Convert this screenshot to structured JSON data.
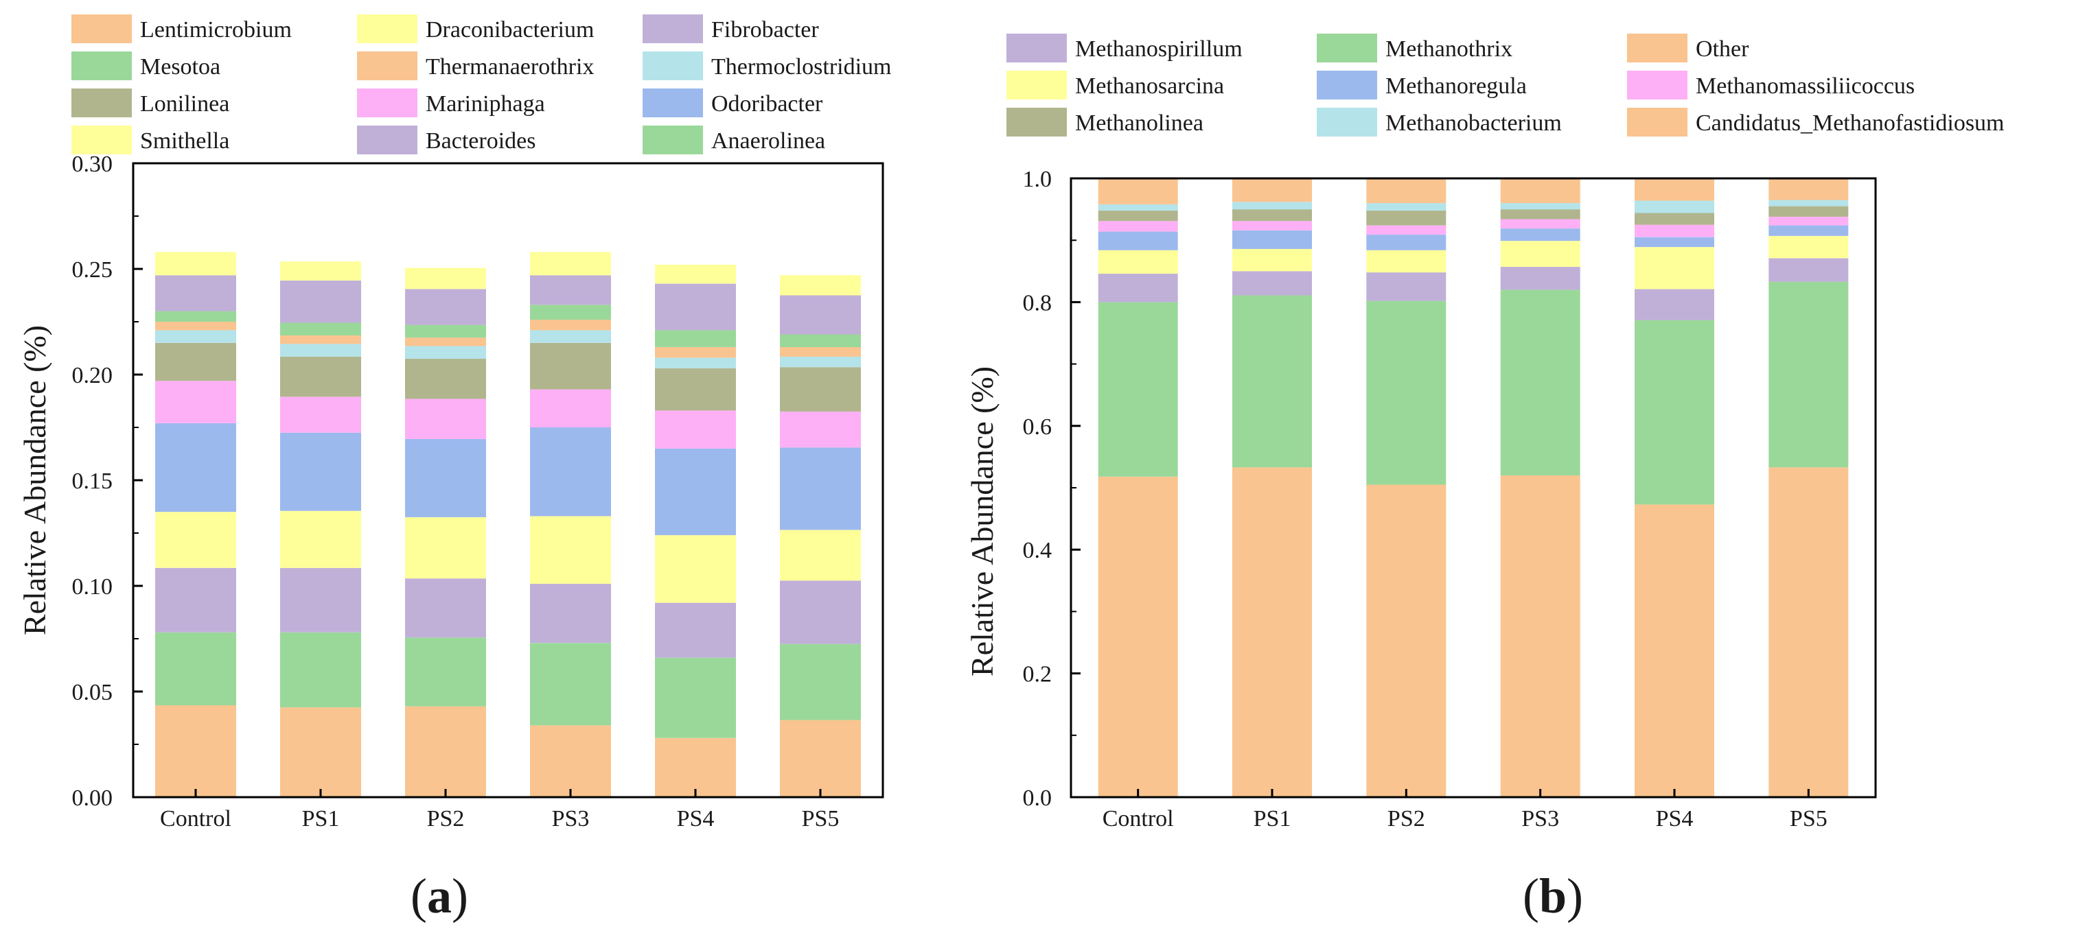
{
  "chart_data": [
    {
      "type": "bar",
      "stacked": true,
      "panel_label": "(a)",
      "panel_letter": "a",
      "title": "",
      "xlabel": "",
      "ylabel": "Relative Abundance (%)",
      "ylim": [
        0,
        0.3
      ],
      "yticks": [
        "0.00",
        "0.05",
        "0.10",
        "0.15",
        "0.20",
        "0.25",
        "0.30"
      ],
      "grid": false,
      "legend_position": "top",
      "categories": [
        "Control",
        "PS1",
        "PS2",
        "PS3",
        "PS4",
        "PS5"
      ],
      "series": [
        {
          "name": "Lentimicrobium",
          "color": "#F9C48F",
          "values": [
            0.0435,
            0.0425,
            0.043,
            0.034,
            0.028,
            0.0365
          ]
        },
        {
          "name": "Mesotoa",
          "color": "#9AD89A",
          "values": [
            0.0345,
            0.0355,
            0.0325,
            0.039,
            0.038,
            0.036
          ]
        },
        {
          "name": "Bacteroides",
          "color": "#C0B0D8",
          "values": [
            0.0305,
            0.0305,
            0.028,
            0.028,
            0.026,
            0.03
          ]
        },
        {
          "name": "Smithella",
          "color": "#FFFF9A",
          "values": [
            0.0265,
            0.027,
            0.029,
            0.032,
            0.032,
            0.024
          ]
        },
        {
          "name": "Odoribacter",
          "color": "#9CB9EE",
          "values": [
            0.042,
            0.037,
            0.037,
            0.042,
            0.041,
            0.039
          ]
        },
        {
          "name": "Mariniphaga",
          "color": "#FDB0F5",
          "values": [
            0.02,
            0.017,
            0.019,
            0.018,
            0.018,
            0.017
          ]
        },
        {
          "name": "Lonilinea",
          "color": "#B1B58E",
          "values": [
            0.018,
            0.019,
            0.019,
            0.022,
            0.02,
            0.021
          ]
        },
        {
          "name": "Thermoclostridium",
          "color": "#B4E3EA",
          "values": [
            0.006,
            0.006,
            0.006,
            0.006,
            0.005,
            0.005
          ]
        },
        {
          "name": "Thermanaerothrix",
          "color": "#F9C48F",
          "values": [
            0.004,
            0.004,
            0.004,
            0.005,
            0.005,
            0.0045
          ]
        },
        {
          "name": "Anaerolinea",
          "color": "#9AD89A",
          "values": [
            0.005,
            0.006,
            0.006,
            0.007,
            0.008,
            0.006
          ]
        },
        {
          "name": "Fibrobacter",
          "color": "#C0B0D8",
          "values": [
            0.017,
            0.02,
            0.017,
            0.014,
            0.022,
            0.0185
          ]
        },
        {
          "name": "Draconibacterium",
          "color": "#FFFF9A",
          "values": [
            0.011,
            0.009,
            0.01,
            0.011,
            0.009,
            0.0095
          ]
        }
      ],
      "legend": [
        [
          "Lentimicrobium",
          "Draconibacterium",
          "Fibrobacter"
        ],
        [
          "Mesotoa",
          "Thermanaerothrix",
          "Thermoclostridium"
        ],
        [
          "Lonilinea",
          "Mariniphaga",
          "Odoribacter"
        ],
        [
          "Smithella",
          "Bacteroides",
          "Anaerolinea"
        ]
      ]
    },
    {
      "type": "bar",
      "stacked": true,
      "panel_label": "(b)",
      "panel_letter": "b",
      "title": "",
      "xlabel": "",
      "ylabel": "Relative Abundance (%)",
      "ylim": [
        0,
        1.0
      ],
      "yticks": [
        "0.0",
        "0.2",
        "0.4",
        "0.6",
        "0.8",
        "1.0"
      ],
      "grid": false,
      "legend_position": "top",
      "categories": [
        "Control",
        "PS1",
        "PS2",
        "PS3",
        "PS4",
        "PS5"
      ],
      "series": [
        {
          "name": "Candidatus_Methanofastidiosum",
          "color": "#F9C48F",
          "values": [
            0.518,
            0.533,
            0.505,
            0.52,
            0.473,
            0.533
          ]
        },
        {
          "name": "Methanothrix",
          "color": "#9AD89A",
          "values": [
            0.282,
            0.278,
            0.297,
            0.3,
            0.298,
            0.3
          ]
        },
        {
          "name": "Methanospirillum",
          "color": "#C0B0D8",
          "values": [
            0.046,
            0.039,
            0.046,
            0.037,
            0.05,
            0.038
          ]
        },
        {
          "name": "Methanosarcina",
          "color": "#FFFF9A",
          "values": [
            0.038,
            0.036,
            0.036,
            0.042,
            0.068,
            0.036
          ]
        },
        {
          "name": "Methanoregula",
          "color": "#9CB9EE",
          "values": [
            0.03,
            0.03,
            0.025,
            0.02,
            0.016,
            0.017
          ]
        },
        {
          "name": "Methanomassiliicoccus",
          "color": "#FDB0F5",
          "values": [
            0.017,
            0.015,
            0.015,
            0.015,
            0.02,
            0.014
          ]
        },
        {
          "name": "Methanolinea",
          "color": "#B1B58E",
          "values": [
            0.017,
            0.019,
            0.024,
            0.016,
            0.019,
            0.017
          ]
        },
        {
          "name": "Methanobacterium",
          "color": "#B4E3EA",
          "values": [
            0.01,
            0.012,
            0.012,
            0.01,
            0.02,
            0.01
          ]
        },
        {
          "name": "Other",
          "color": "#F9C48F",
          "values": [
            0.042,
            0.038,
            0.04,
            0.04,
            0.036,
            0.035
          ]
        }
      ],
      "legend": [
        [
          "Methanospirillum",
          "Methanothrix",
          "Other"
        ],
        [
          "Methanosarcina",
          "Methanoregula",
          "Methanomassiliicoccus"
        ],
        [
          "Methanolinea",
          "Methanobacterium",
          "Candidatus_Methanofastidiosum"
        ]
      ]
    }
  ]
}
